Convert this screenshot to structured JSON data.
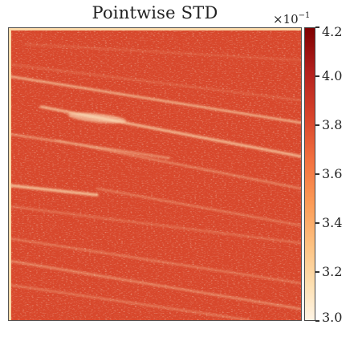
{
  "chart_data": {
    "type": "heatmap",
    "title": "Pointwise STD",
    "colorbar": {
      "ticks": [
        "3.0",
        "3.2",
        "3.4",
        "3.6",
        "3.8",
        "4.0",
        "4.2"
      ],
      "range": [
        3.0,
        4.2
      ],
      "multiplier_base": "×10",
      "multiplier_exponent": "−1",
      "colormap": "OrRd"
    },
    "colors": {
      "low": "#fff5e6",
      "high": "#7f0000"
    }
  }
}
